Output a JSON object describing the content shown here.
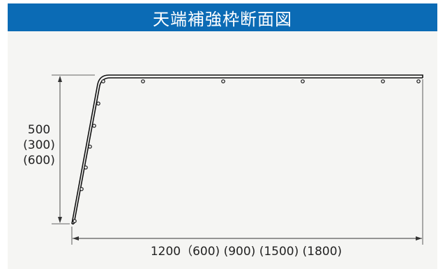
{
  "header": {
    "title": "天端補強枠断面図"
  },
  "dimensions": {
    "height_main": "500",
    "height_alt_1": "(300)",
    "height_alt_2": "(600)",
    "width": "1200（600) (900) (1500) (1800)"
  },
  "colors": {
    "header_bg": "#0b6bb5",
    "panel_bg": "#f5f5f3",
    "line": "#111111"
  }
}
